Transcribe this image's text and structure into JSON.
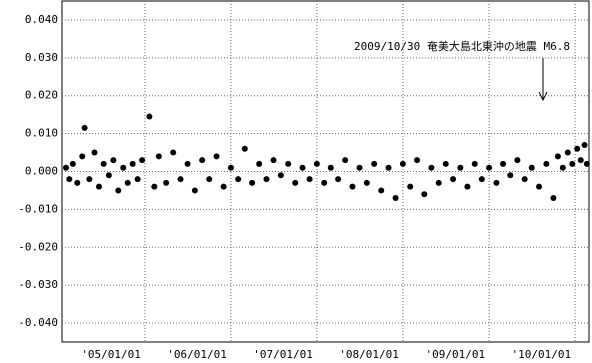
{
  "chart_data": {
    "type": "scatter",
    "annotation": "2009/10/30 奄美大島北東沖の地震 M6.8",
    "color": "#000000",
    "grid": true,
    "xlim": [
      "2004-01-15",
      "2010-03-01"
    ],
    "xticks": [
      {
        "value": "2005-01-01",
        "label": "'05/01/01"
      },
      {
        "value": "2006-01-01",
        "label": "'06/01/01"
      },
      {
        "value": "2007-01-01",
        "label": "'07/01/01"
      },
      {
        "value": "2008-01-01",
        "label": "'08/01/01"
      },
      {
        "value": "2009-01-01",
        "label": "'09/01/01"
      },
      {
        "value": "2010-01-01",
        "label": "'10/01/01"
      }
    ],
    "ylim": [
      -0.045,
      0.045
    ],
    "yticks": [
      {
        "value": 0.04,
        "label": "0.040"
      },
      {
        "value": 0.03,
        "label": "0.030"
      },
      {
        "value": 0.02,
        "label": "0.020"
      },
      {
        "value": 0.01,
        "label": "0.010"
      },
      {
        "value": 0,
        "label": "0.000"
      },
      {
        "value": -0.01,
        "label": "-0.010"
      },
      {
        "value": -0.02,
        "label": "-0.020"
      },
      {
        "value": -0.03,
        "label": "-0.030"
      },
      {
        "value": -0.04,
        "label": "-0.040"
      }
    ],
    "x": [
      "2004-02-01",
      "2004-02-15",
      "2004-03-01",
      "2004-03-20",
      "2004-04-10",
      "2004-04-20",
      "2004-05-10",
      "2004-06-01",
      "2004-06-20",
      "2004-07-10",
      "2004-08-01",
      "2004-08-20",
      "2004-09-10",
      "2004-10-01",
      "2004-10-20",
      "2004-11-10",
      "2004-12-01",
      "2004-12-20",
      "2005-01-20",
      "2005-02-10",
      "2005-03-01",
      "2005-04-01",
      "2005-05-01",
      "2005-06-01",
      "2005-07-01",
      "2005-08-01",
      "2005-09-01",
      "2005-10-01",
      "2005-11-01",
      "2005-12-01",
      "2006-01-01",
      "2006-02-01",
      "2006-03-01",
      "2006-04-01",
      "2006-05-01",
      "2006-06-01",
      "2006-07-01",
      "2006-08-01",
      "2006-09-01",
      "2006-10-01",
      "2006-11-01",
      "2006-12-01",
      "2007-01-01",
      "2007-02-01",
      "2007-03-01",
      "2007-04-01",
      "2007-05-01",
      "2007-06-01",
      "2007-07-01",
      "2007-08-01",
      "2007-09-01",
      "2007-10-01",
      "2007-11-01",
      "2007-12-01",
      "2008-01-01",
      "2008-02-01",
      "2008-03-01",
      "2008-04-01",
      "2008-05-01",
      "2008-06-01",
      "2008-07-01",
      "2008-08-01",
      "2008-09-01",
      "2008-10-01",
      "2008-11-01",
      "2008-12-01",
      "2009-01-01",
      "2009-02-01",
      "2009-03-01",
      "2009-04-01",
      "2009-05-01",
      "2009-06-01",
      "2009-07-01",
      "2009-08-01",
      "2009-09-01",
      "2009-10-01",
      "2009-10-20",
      "2009-11-10",
      "2009-12-01",
      "2009-12-20",
      "2010-01-10",
      "2010-01-25",
      "2010-02-10",
      "2010-02-20"
    ],
    "values": [
      0.001,
      -0.002,
      0.002,
      -0.003,
      0.004,
      0.0115,
      -0.002,
      0.005,
      -0.004,
      0.002,
      -0.001,
      0.003,
      -0.005,
      0.001,
      -0.003,
      0.002,
      -0.002,
      0.003,
      0.0145,
      -0.004,
      0.004,
      -0.003,
      0.005,
      -0.002,
      0.002,
      -0.005,
      0.003,
      -0.002,
      0.004,
      -0.004,
      0.001,
      -0.002,
      0.006,
      -0.003,
      0.002,
      -0.002,
      0.003,
      -0.001,
      0.002,
      -0.003,
      0.001,
      -0.002,
      0.002,
      -0.003,
      0.001,
      -0.002,
      0.003,
      -0.004,
      0.001,
      -0.003,
      0.002,
      -0.005,
      0.001,
      -0.007,
      0.002,
      -0.004,
      0.003,
      -0.006,
      0.001,
      -0.003,
      0.002,
      -0.002,
      0.001,
      -0.004,
      0.002,
      -0.002,
      0.001,
      -0.003,
      0.002,
      -0.001,
      0.003,
      -0.002,
      0.001,
      -0.004,
      0.002,
      -0.007,
      0.004,
      0.001,
      0.005,
      0.002,
      0.006,
      0.003,
      0.007,
      0.002
    ]
  }
}
